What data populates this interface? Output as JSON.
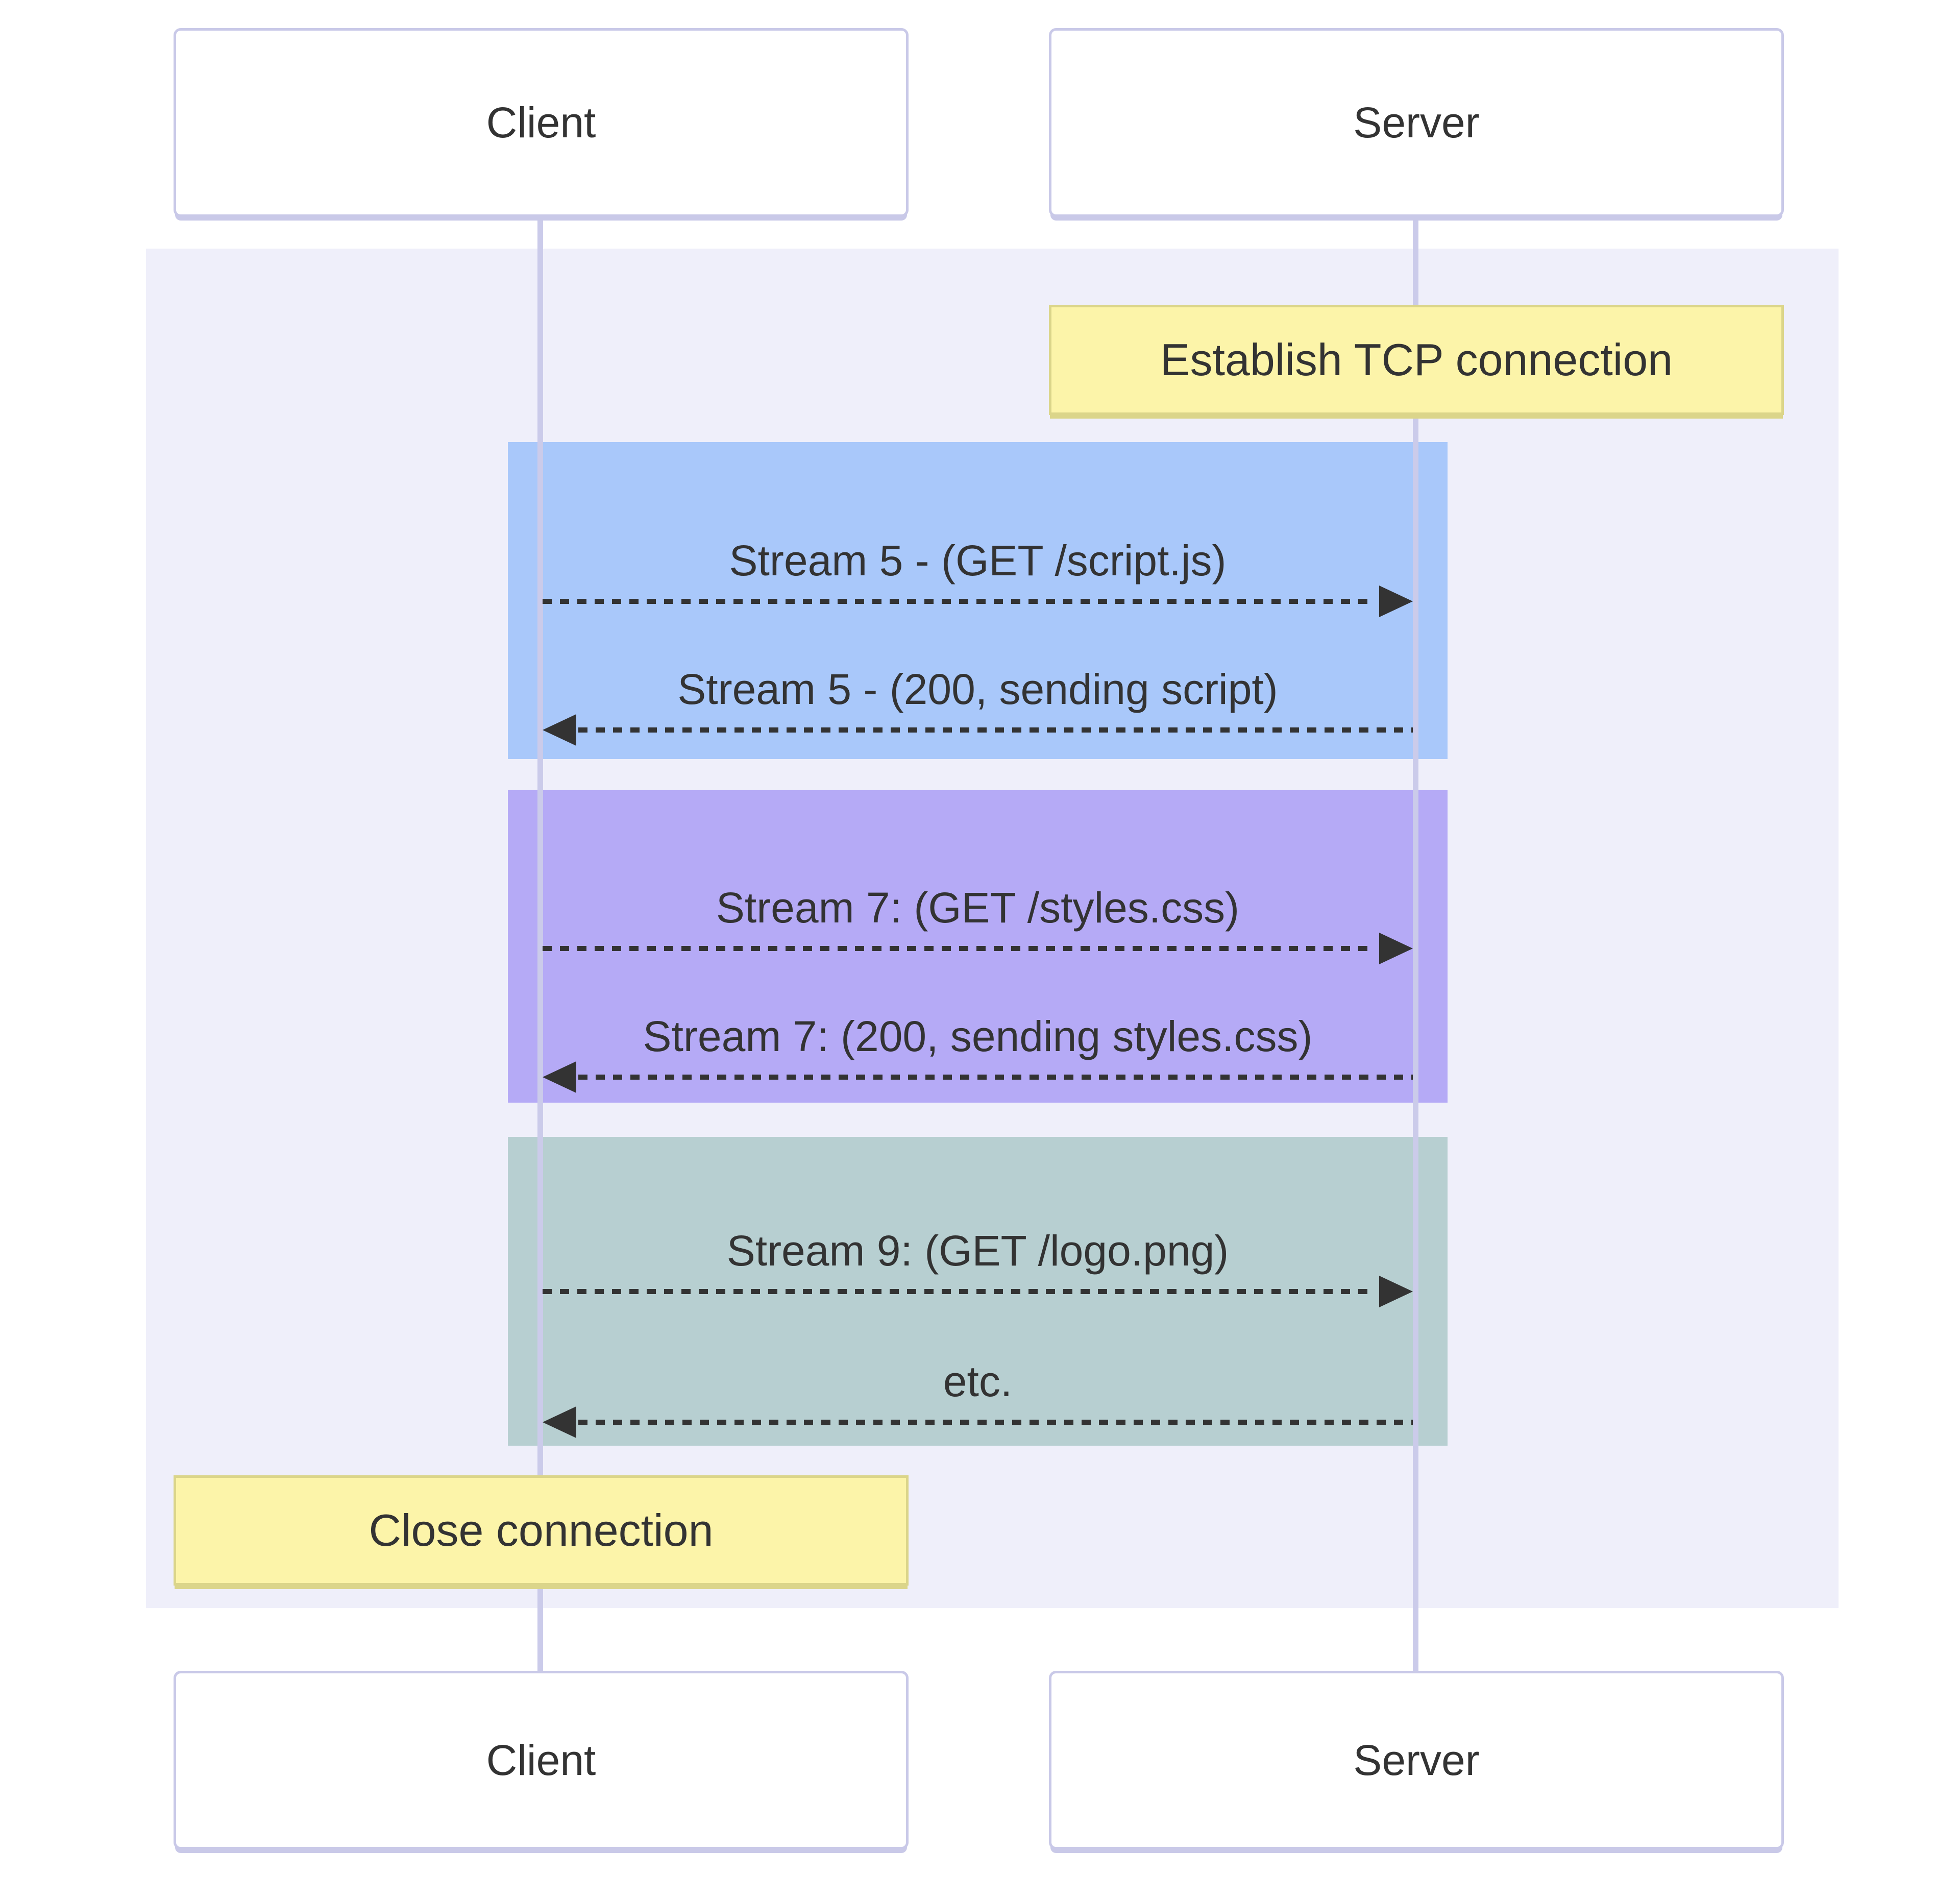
{
  "diagram": {
    "type": "sequence-diagram",
    "actors": [
      {
        "id": "client",
        "label": "Client"
      },
      {
        "id": "server",
        "label": "Server"
      }
    ],
    "notes": [
      {
        "id": "establish",
        "label": "Establish TCP connection",
        "over": "server"
      },
      {
        "id": "close",
        "label": "Close connection",
        "over": "client"
      }
    ],
    "groups": [
      {
        "name": "stream-5",
        "color": "#A9C8FA",
        "messages": [
          {
            "text": "Stream 5 - (GET /script.js)",
            "from": "client",
            "to": "server",
            "style": "dashed"
          },
          {
            "text": "Stream 5 - (200, sending script)",
            "from": "server",
            "to": "client",
            "style": "dashed"
          }
        ]
      },
      {
        "name": "stream-7",
        "color": "#B5AAF6",
        "messages": [
          {
            "text": "Stream 7: (GET /styles.css)",
            "from": "client",
            "to": "server",
            "style": "dashed"
          },
          {
            "text": "Stream 7: (200, sending styles.css)",
            "from": "server",
            "to": "client",
            "style": "dashed"
          }
        ]
      },
      {
        "name": "stream-9",
        "color": "#B7CFD1",
        "messages": [
          {
            "text": "Stream 9: (GET /logo.png)",
            "from": "client",
            "to": "server",
            "style": "dashed"
          },
          {
            "text": "etc.",
            "from": "server",
            "to": "client",
            "style": "dashed"
          }
        ]
      }
    ],
    "colors": {
      "background_band": "#EFEFFA",
      "stream5_rect": "#A9C8FA",
      "stream7_rect": "#B5AAF6",
      "stream9_rect": "#B7CFD1",
      "note_fill": "#FCF4A9",
      "note_border": "#DBD58A",
      "actor_fill": "#FFFFFF",
      "actor_border": "#C9C9E8",
      "lifeline": "#CBCBEA",
      "arrow": "#333333",
      "text": "#333333"
    }
  }
}
